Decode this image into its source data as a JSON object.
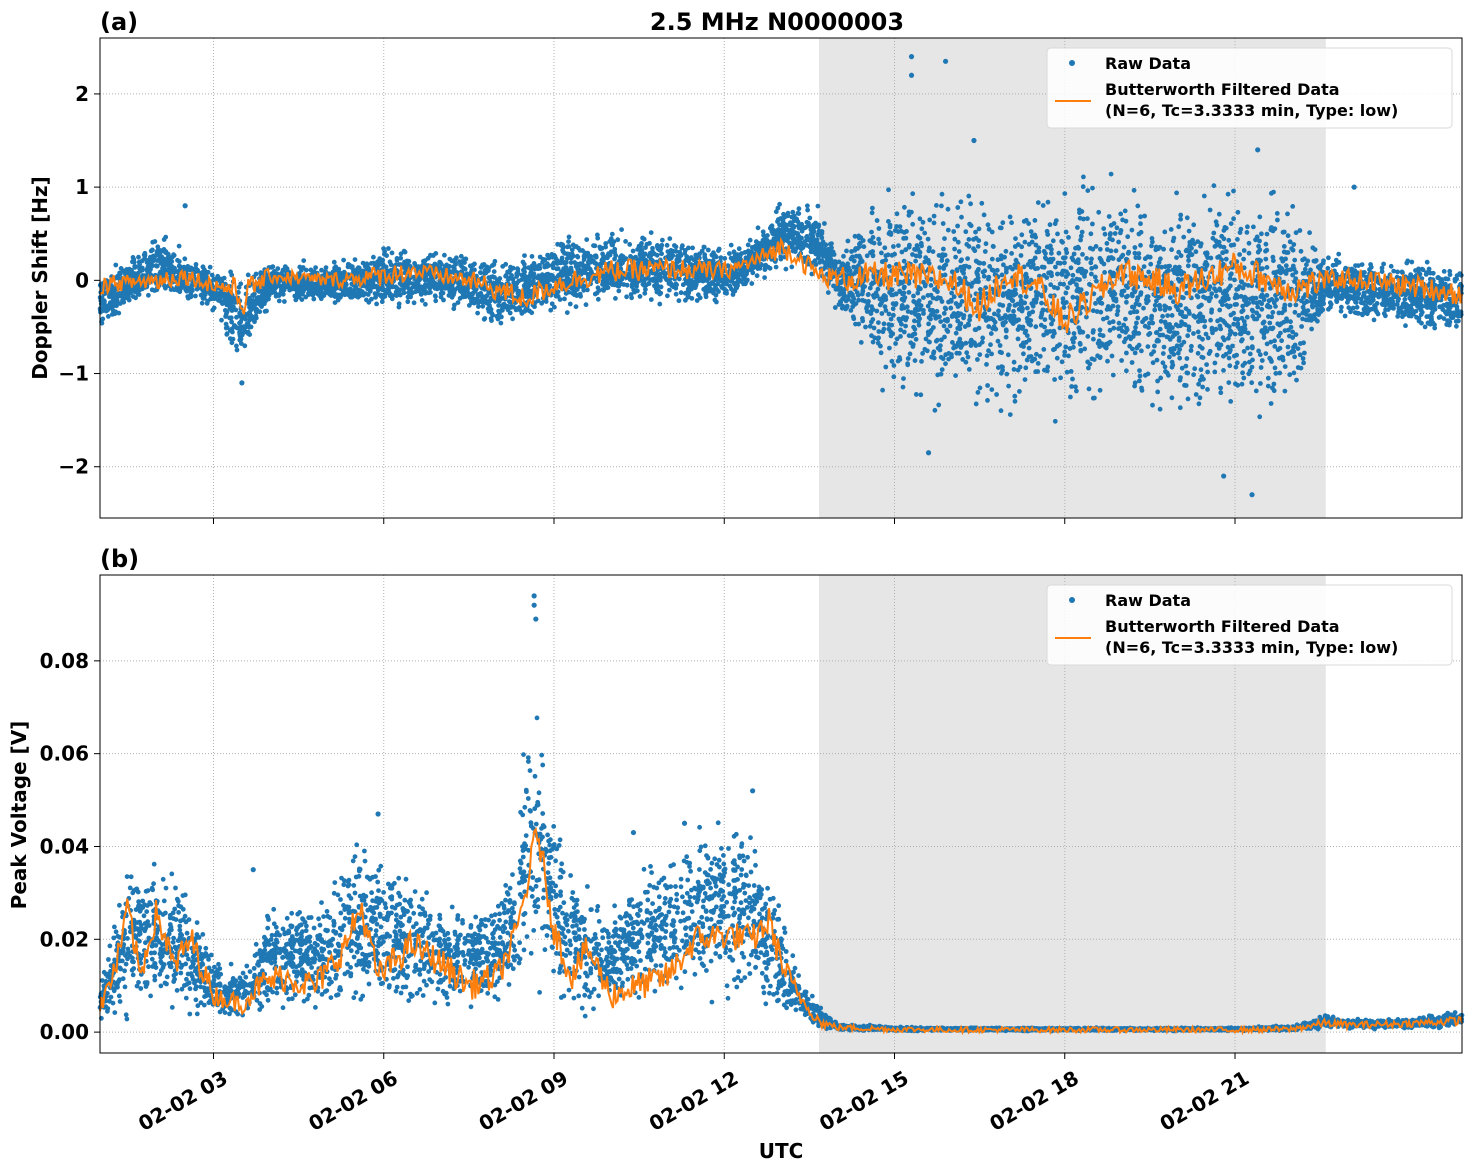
{
  "figure": {
    "title": "2.5 MHz N0000003",
    "x_axis_label": "UTC"
  },
  "chart_data": [
    {
      "panel_label": "(a)",
      "type": "scatter",
      "ylabel": "Doppler Shift [Hz]",
      "xlim_hours": [
        1.0,
        25.0
      ],
      "ylim": [
        -2.55,
        2.6
      ],
      "yticks": [
        -2,
        -1,
        0,
        1,
        2
      ],
      "ytick_labels": [
        "−2",
        "−1",
        "0",
        "1",
        "2"
      ],
      "xticks_hours": [
        3,
        6,
        9,
        12,
        15,
        18,
        21
      ],
      "xtick_labels": [
        "02-02 03",
        "02-02 06",
        "02-02 09",
        "02-02 12",
        "02-02 15",
        "02-02 18",
        "02-02 21"
      ],
      "grid": true,
      "shaded_interval_hours": [
        13.67,
        22.6
      ],
      "legend_position": "top-right",
      "series": [
        {
          "name": "Raw Data",
          "kind": "points",
          "color": "#1f77b4"
        },
        {
          "name": "Butterworth Filtered Data",
          "name_line2": "(N=6, Tc=3.3333 min, Type: low)",
          "kind": "line",
          "color": "#ff7f0e"
        }
      ],
      "envelope_hours": [
        1.0,
        1.5,
        2.0,
        2.5,
        3.0,
        3.5,
        4.0,
        5.0,
        6.0,
        7.0,
        8.0,
        9.0,
        10.0,
        11.0,
        12.0,
        12.5,
        13.0,
        13.67,
        14.0,
        15.0,
        16.0,
        17.0,
        18.0,
        19.0,
        20.0,
        21.0,
        22.0,
        22.6,
        23.0,
        24.0,
        25.0
      ],
      "envelope_upper": [
        0.15,
        0.25,
        0.6,
        0.35,
        0.2,
        0.15,
        0.25,
        0.2,
        0.45,
        0.35,
        0.3,
        0.5,
        0.6,
        0.55,
        0.4,
        0.5,
        0.9,
        0.85,
        0.4,
        1.3,
        1.2,
        1.25,
        1.3,
        1.3,
        1.3,
        1.25,
        1.2,
        0.3,
        0.35,
        0.3,
        0.25
      ],
      "envelope_lower": [
        -0.6,
        -0.3,
        -0.3,
        -0.3,
        -0.4,
        -1.0,
        -0.3,
        -0.3,
        -0.4,
        -0.3,
        -0.6,
        -0.4,
        -0.3,
        -0.3,
        -0.3,
        -0.1,
        0.05,
        0.0,
        -0.4,
        -1.5,
        -1.6,
        -1.6,
        -1.6,
        -1.6,
        -1.7,
        -1.7,
        -1.6,
        -0.4,
        -0.5,
        -0.6,
        -0.7
      ],
      "filtered_hours": [
        1.0,
        1.5,
        2.0,
        2.5,
        3.0,
        3.4,
        3.5,
        3.6,
        4.0,
        5.0,
        6.0,
        6.5,
        7.0,
        7.5,
        8.0,
        8.5,
        9.0,
        10.0,
        11.0,
        12.0,
        12.5,
        13.0,
        13.2,
        13.67,
        14.0,
        15.0,
        16.0,
        16.5,
        17.0,
        17.5,
        18.0,
        19.0,
        20.0,
        21.0,
        22.0,
        22.6,
        23.0,
        24.0,
        25.0
      ],
      "filtered_values": [
        -0.05,
        -0.02,
        0.0,
        0.05,
        -0.05,
        -0.1,
        -0.3,
        -0.1,
        0.05,
        0.0,
        0.05,
        0.1,
        0.05,
        0.0,
        -0.1,
        -0.2,
        -0.05,
        0.1,
        0.12,
        0.1,
        0.2,
        0.35,
        0.3,
        0.05,
        0.02,
        0.05,
        0.0,
        -0.3,
        0.1,
        -0.05,
        -0.45,
        0.1,
        -0.1,
        0.15,
        -0.1,
        0.0,
        0.02,
        -0.05,
        -0.15
      ],
      "sparse_outliers": [
        [
          15.3,
          2.4
        ],
        [
          15.9,
          2.35
        ],
        [
          15.3,
          2.2
        ],
        [
          16.4,
          1.5
        ],
        [
          21.4,
          1.4
        ],
        [
          23.1,
          1.0
        ],
        [
          21.3,
          -2.3
        ],
        [
          20.8,
          -2.1
        ],
        [
          15.6,
          -1.85
        ],
        [
          3.5,
          -1.1
        ],
        [
          2.5,
          0.8
        ]
      ]
    },
    {
      "panel_label": "(b)",
      "type": "scatter",
      "ylabel": "Peak Voltage [V]",
      "xlim_hours": [
        1.0,
        25.0
      ],
      "ylim": [
        -0.0045,
        0.0985
      ],
      "yticks": [
        0.0,
        0.02,
        0.04,
        0.06,
        0.08
      ],
      "ytick_labels": [
        "0.00",
        "0.02",
        "0.04",
        "0.06",
        "0.08"
      ],
      "xticks_hours": [
        3,
        6,
        9,
        12,
        15,
        18,
        21
      ],
      "xtick_labels": [
        "02-02 03",
        "02-02 06",
        "02-02 09",
        "02-02 12",
        "02-02 15",
        "02-02 18",
        "02-02 21"
      ],
      "grid": true,
      "shaded_interval_hours": [
        13.67,
        22.6
      ],
      "legend_position": "top-right",
      "series": [
        {
          "name": "Raw Data",
          "kind": "points",
          "color": "#1f77b4"
        },
        {
          "name": "Butterworth Filtered Data",
          "name_line2": "(N=6, Tc=3.3333 min, Type: low)",
          "kind": "line",
          "color": "#ff7f0e"
        }
      ],
      "envelope_hours": [
        1.0,
        1.5,
        2.0,
        2.5,
        3.0,
        3.5,
        4.0,
        5.0,
        5.5,
        6.0,
        6.5,
        7.0,
        7.5,
        8.0,
        8.3,
        8.6,
        8.9,
        9.2,
        9.6,
        10.0,
        10.5,
        11.0,
        11.5,
        12.0,
        12.5,
        13.0,
        13.3,
        13.7,
        14.0,
        15.0,
        16.0,
        18.0,
        20.0,
        21.0,
        22.0,
        22.6,
        23.0,
        24.0,
        25.0
      ],
      "envelope_upper": [
        0.012,
        0.04,
        0.038,
        0.036,
        0.018,
        0.016,
        0.03,
        0.032,
        0.046,
        0.04,
        0.038,
        0.03,
        0.03,
        0.032,
        0.045,
        0.078,
        0.06,
        0.04,
        0.034,
        0.028,
        0.04,
        0.042,
        0.05,
        0.052,
        0.048,
        0.028,
        0.014,
        0.006,
        0.002,
        0.0012,
        0.001,
        0.001,
        0.001,
        0.001,
        0.0015,
        0.004,
        0.003,
        0.003,
        0.005
      ],
      "envelope_lower": [
        0.001,
        0.001,
        0.001,
        0.001,
        0.001,
        0.001,
        0.002,
        0.002,
        0.002,
        0.002,
        0.002,
        0.003,
        0.003,
        0.003,
        0.005,
        0.008,
        0.006,
        0.003,
        0.002,
        0.002,
        0.003,
        0.004,
        0.004,
        0.004,
        0.004,
        0.002,
        0.001,
        0.0003,
        0.0002,
        0.0002,
        0.0002,
        0.0002,
        0.0002,
        0.0002,
        0.0002,
        0.0005,
        0.0005,
        0.0005,
        0.0008
      ],
      "filtered_hours": [
        1.0,
        1.3,
        1.5,
        1.7,
        2.0,
        2.3,
        2.6,
        3.0,
        3.5,
        3.8,
        4.2,
        4.8,
        5.3,
        5.6,
        5.9,
        6.5,
        7.0,
        7.5,
        8.0,
        8.3,
        8.5,
        8.7,
        9.0,
        9.3,
        9.6,
        10.0,
        10.5,
        11.0,
        11.5,
        12.0,
        12.5,
        12.8,
        13.0,
        13.3,
        13.7,
        14.0,
        15.0,
        16.0,
        18.0,
        20.0,
        21.0,
        22.0,
        22.6,
        23.0,
        24.0,
        25.0
      ],
      "filtered_values": [
        0.005,
        0.015,
        0.027,
        0.012,
        0.026,
        0.014,
        0.02,
        0.008,
        0.006,
        0.01,
        0.012,
        0.01,
        0.018,
        0.027,
        0.012,
        0.019,
        0.015,
        0.01,
        0.012,
        0.02,
        0.03,
        0.044,
        0.022,
        0.012,
        0.018,
        0.008,
        0.01,
        0.012,
        0.02,
        0.021,
        0.02,
        0.024,
        0.015,
        0.008,
        0.002,
        0.001,
        0.0006,
        0.0005,
        0.0005,
        0.0005,
        0.0005,
        0.0006,
        0.002,
        0.0015,
        0.0018,
        0.0025
      ],
      "sparse_outliers": [
        [
          8.65,
          0.094
        ],
        [
          8.65,
          0.092
        ],
        [
          8.68,
          0.089
        ],
        [
          11.3,
          0.045
        ],
        [
          12.5,
          0.052
        ],
        [
          10.4,
          0.043
        ],
        [
          5.9,
          0.047
        ],
        [
          3.7,
          0.035
        ]
      ]
    }
  ]
}
